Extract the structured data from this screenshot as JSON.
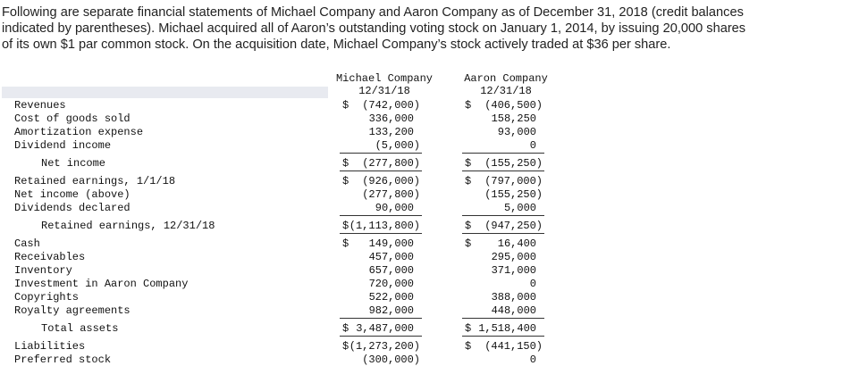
{
  "intro": {
    "lines": [
      "Following are separate financial statements of Michael Company and Aaron Company as of December 31, 2018 (credit balances",
      "indicated by parentheses). Michael acquired all of Aaron’s outstanding voting stock on January 1, 2014, by issuing 20,000 shares",
      "of its own $1 par common stock. On the acquisition date, Michael Company’s stock actively traded at $36 per share."
    ]
  },
  "table": {
    "headers": [
      {
        "name": "Michael Company",
        "date": "12/31/18"
      },
      {
        "name": "Aaron Company",
        "date": "12/31/18"
      }
    ],
    "rows": [
      {
        "label": "Revenues",
        "cells": [
          {
            "cur": "$",
            "amt": "(742,000)"
          },
          {
            "cur": "$",
            "amt": "(406,500)"
          }
        ]
      },
      {
        "label": "Cost of goods sold",
        "cells": [
          {
            "amt": "336,000"
          },
          {
            "amt": "158,250"
          }
        ]
      },
      {
        "label": "Amortization expense",
        "cells": [
          {
            "amt": "133,200"
          },
          {
            "amt": "93,000"
          }
        ]
      },
      {
        "label": "Dividend income",
        "underline": true,
        "cells": [
          {
            "amt": "(5,000)"
          },
          {
            "amt": "0"
          }
        ]
      },
      {
        "label": "Net income",
        "indent": true,
        "underline": true,
        "cells": [
          {
            "cur": "$",
            "amt": "(277,800)"
          },
          {
            "cur": "$",
            "amt": "(155,250)"
          }
        ]
      },
      {
        "label": "Retained earnings, 1/1/18",
        "cells": [
          {
            "cur": "$",
            "amt": "(926,000)"
          },
          {
            "cur": "$",
            "amt": "(797,000)"
          }
        ]
      },
      {
        "label": "Net income (above)",
        "cells": [
          {
            "amt": "(277,800)"
          },
          {
            "amt": "(155,250)"
          }
        ]
      },
      {
        "label": "Dividends declared",
        "underline": true,
        "cells": [
          {
            "amt": "90,000"
          },
          {
            "amt": "5,000"
          }
        ]
      },
      {
        "label": "Retained earnings, 12/31/18",
        "indent": true,
        "underline": true,
        "cells": [
          {
            "cur": "$",
            "amt": "(1,113,800)"
          },
          {
            "cur": "$",
            "amt": "(947,250)"
          }
        ]
      },
      {
        "label": "Cash",
        "cells": [
          {
            "cur": "$",
            "amt": "149,000"
          },
          {
            "cur": "$",
            "amt": "16,400"
          }
        ]
      },
      {
        "label": "Receivables",
        "cells": [
          {
            "amt": "457,000"
          },
          {
            "amt": "295,000"
          }
        ]
      },
      {
        "label": "Inventory",
        "cells": [
          {
            "amt": "657,000"
          },
          {
            "amt": "371,000"
          }
        ]
      },
      {
        "label": "Investment in Aaron Company",
        "cells": [
          {
            "amt": "720,000"
          },
          {
            "amt": "0"
          }
        ]
      },
      {
        "label": "Copyrights",
        "cells": [
          {
            "amt": "522,000"
          },
          {
            "amt": "388,000"
          }
        ]
      },
      {
        "label": "Royalty agreements",
        "underline": true,
        "cells": [
          {
            "amt": "982,000"
          },
          {
            "amt": "448,000"
          }
        ]
      },
      {
        "label": "Total assets",
        "indent": true,
        "underline": true,
        "cells": [
          {
            "cur": "$",
            "amt": "3,487,000"
          },
          {
            "cur": "$",
            "amt": "1,518,400"
          }
        ]
      },
      {
        "label": "Liabilities",
        "cells": [
          {
            "cur": "$",
            "amt": "(1,273,200)"
          },
          {
            "cur": "$",
            "amt": "(441,150)"
          }
        ]
      },
      {
        "label": "Preferred stock",
        "cells": [
          {
            "amt": "(300,000)"
          },
          {
            "amt": "0"
          }
        ]
      }
    ]
  }
}
